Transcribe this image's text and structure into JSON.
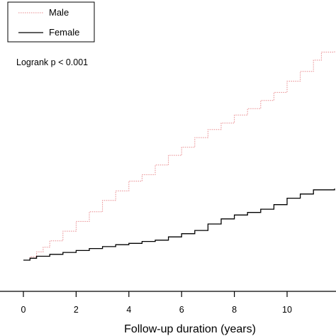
{
  "chart_data": {
    "type": "line",
    "title": "",
    "xlabel": "Follow-up duration (years)",
    "ylabel": "",
    "xlim": [
      0,
      11.8
    ],
    "x_ticks": [
      0,
      2,
      4,
      6,
      8,
      10
    ],
    "grid": false,
    "legend_position": "top-left",
    "annotation": "Logrank p < 0.001",
    "series": [
      {
        "name": "Male",
        "color": "#e8888c",
        "style": "dotted",
        "points": [
          [
            0,
            0.0
          ],
          [
            0.25,
            0.01
          ],
          [
            0.5,
            0.026
          ],
          [
            0.75,
            0.04
          ],
          [
            1.0,
            0.06
          ],
          [
            1.5,
            0.09
          ],
          [
            2.0,
            0.12
          ],
          [
            2.5,
            0.15
          ],
          [
            3.0,
            0.185
          ],
          [
            3.5,
            0.215
          ],
          [
            4.0,
            0.245
          ],
          [
            4.5,
            0.265
          ],
          [
            5.0,
            0.295
          ],
          [
            5.5,
            0.325
          ],
          [
            6.0,
            0.35
          ],
          [
            6.5,
            0.38
          ],
          [
            7.0,
            0.405
          ],
          [
            7.5,
            0.425
          ],
          [
            8.0,
            0.45
          ],
          [
            8.5,
            0.47
          ],
          [
            9.0,
            0.495
          ],
          [
            9.5,
            0.52
          ],
          [
            10.0,
            0.555
          ],
          [
            10.5,
            0.585
          ],
          [
            11.0,
            0.62
          ],
          [
            11.3,
            0.645
          ],
          [
            11.8,
            0.65
          ]
        ]
      },
      {
        "name": "Female",
        "color": "#000000",
        "style": "solid",
        "points": [
          [
            0,
            0.0
          ],
          [
            0.25,
            0.006
          ],
          [
            0.5,
            0.012
          ],
          [
            1.0,
            0.018
          ],
          [
            1.5,
            0.024
          ],
          [
            2.0,
            0.03
          ],
          [
            2.5,
            0.036
          ],
          [
            3.0,
            0.042
          ],
          [
            3.5,
            0.048
          ],
          [
            4.0,
            0.052
          ],
          [
            4.5,
            0.058
          ],
          [
            5.0,
            0.062
          ],
          [
            5.5,
            0.072
          ],
          [
            6.0,
            0.082
          ],
          [
            6.5,
            0.092
          ],
          [
            7.0,
            0.112
          ],
          [
            7.5,
            0.128
          ],
          [
            8.0,
            0.14
          ],
          [
            8.5,
            0.148
          ],
          [
            9.0,
            0.158
          ],
          [
            9.5,
            0.172
          ],
          [
            10.0,
            0.192
          ],
          [
            10.5,
            0.205
          ],
          [
            11.0,
            0.218
          ],
          [
            11.8,
            0.222
          ]
        ]
      }
    ]
  }
}
